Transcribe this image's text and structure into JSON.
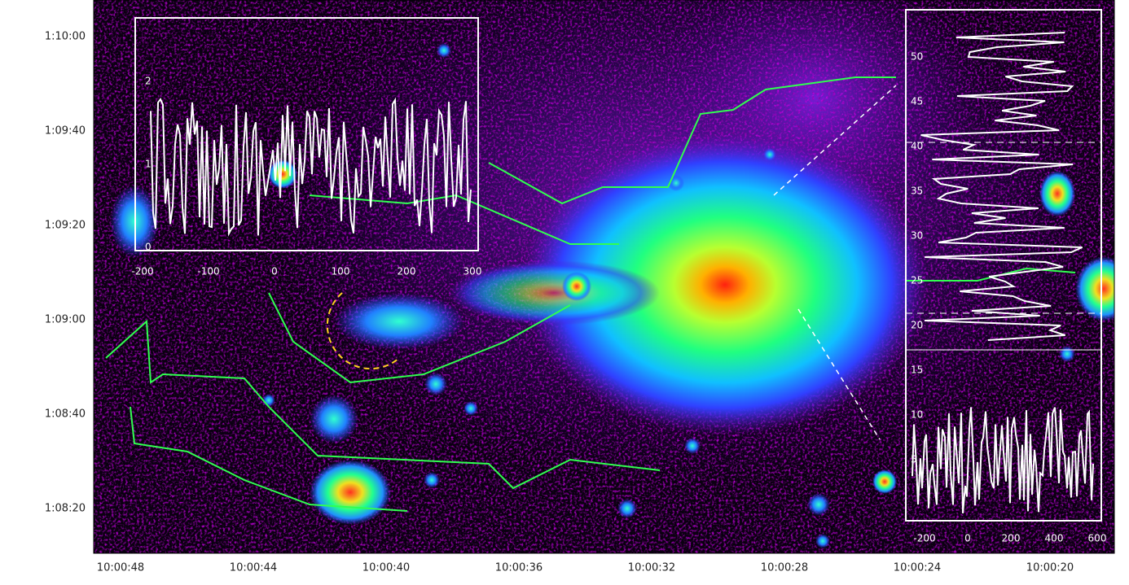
{
  "figure": {
    "x_axis": {
      "labels": [
        "10:00:48",
        "10:00:44",
        "10:00:40",
        "10:00:36",
        "10:00:32",
        "10:00:28",
        "10:00:24",
        "10:00:20"
      ]
    },
    "y_axis": {
      "labels": [
        "1:10:00",
        "1:09:40",
        "1:09:20",
        "1:09:00",
        "1:08:40",
        "1:08:20"
      ]
    },
    "left_inset": {
      "x_labels": [
        "-200",
        "-100",
        "0",
        "100",
        "200",
        "300"
      ],
      "y_labels": [
        "2",
        "1",
        "0"
      ]
    },
    "right_inset": {
      "x_labels": [
        "-200",
        "0",
        "200",
        "400",
        "600"
      ],
      "y_labels": [
        "50",
        "45",
        "40",
        "35",
        "30",
        "25",
        "20",
        "15",
        "10",
        "5"
      ]
    }
  }
}
